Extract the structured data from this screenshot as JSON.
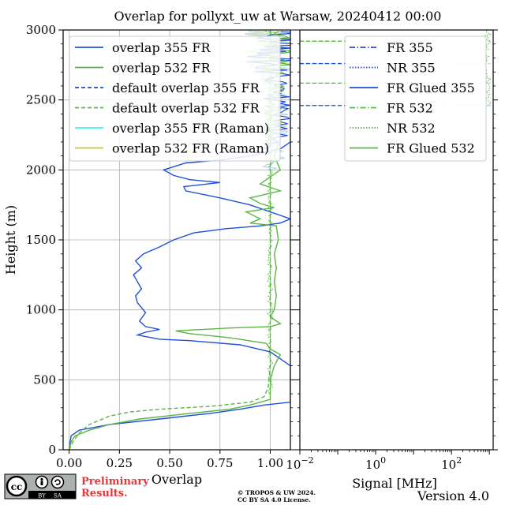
{
  "title": "Overlap for pollyxt_uw at Warsaw, 20240412 00:00",
  "version": "Version 4.0",
  "copyright": [
    "© TROPOS & UW 2024.",
    "CC BY SA 4.0 License."
  ],
  "preliminary": [
    "Preliminary",
    "Results."
  ],
  "license_badge": {
    "cc": "cc",
    "by": "BY",
    "sa": "SA"
  },
  "colors": {
    "blue": "#1f4fd6",
    "green": "#5bb545",
    "cyan": "#3ef3f0",
    "yellow": "#c9cc2a",
    "light_blue": "#c9d8ee",
    "light_green": "#cfe6c3",
    "prelim": "#e8353a"
  },
  "chart_data": [
    {
      "type": "line",
      "ylabel": "Height (m)",
      "xlabel": "Overlap",
      "xlim": [
        -0.03,
        1.1
      ],
      "ylim": [
        0,
        3000
      ],
      "grid": true,
      "legend_position": "top-right",
      "xticks": [
        {
          "v": 0,
          "label": "0.00"
        },
        {
          "v": 0.25,
          "label": "0.25"
        },
        {
          "v": 0.5,
          "label": "0.50"
        },
        {
          "v": 0.75,
          "label": "0.75"
        },
        {
          "v": 1.0,
          "label": "1.00"
        }
      ],
      "yticks": [
        {
          "v": 0,
          "label": "0"
        },
        {
          "v": 500,
          "label": "500"
        },
        {
          "v": 1000,
          "label": "1000"
        },
        {
          "v": 1500,
          "label": "1500"
        },
        {
          "v": 2000,
          "label": "2000"
        },
        {
          "v": 2500,
          "label": "2500"
        },
        {
          "v": 3000,
          "label": "3000"
        }
      ],
      "series": [
        {
          "name": "overlap 355 FR",
          "color": "#1f4fd6",
          "style": "solid",
          "points": [
            [
              0.0,
              0
            ],
            [
              0.005,
              60
            ],
            [
              0.01,
              100
            ],
            [
              0.05,
              140
            ],
            [
              0.2,
              180
            ],
            [
              0.45,
              220
            ],
            [
              0.7,
              260
            ],
            [
              0.85,
              290
            ],
            [
              0.97,
              320
            ],
            [
              1.1,
              340
            ],
            [
              1.1,
              600
            ],
            [
              1.0,
              700
            ],
            [
              0.85,
              750
            ],
            [
              0.6,
              780
            ],
            [
              0.45,
              790
            ],
            [
              0.34,
              820
            ],
            [
              0.38,
              840
            ],
            [
              0.45,
              860
            ],
            [
              0.38,
              880
            ],
            [
              0.35,
              920
            ],
            [
              0.38,
              980
            ],
            [
              0.34,
              1050
            ],
            [
              0.33,
              1100
            ],
            [
              0.36,
              1150
            ],
            [
              0.34,
              1200
            ],
            [
              0.32,
              1250
            ],
            [
              0.36,
              1300
            ],
            [
              0.33,
              1350
            ],
            [
              0.37,
              1400
            ],
            [
              0.45,
              1450
            ],
            [
              0.52,
              1500
            ],
            [
              0.62,
              1550
            ],
            [
              0.78,
              1580
            ],
            [
              0.95,
              1600
            ],
            [
              1.05,
              1620
            ],
            [
              1.1,
              1650
            ],
            [
              1.0,
              1700
            ],
            [
              0.9,
              1750
            ],
            [
              0.75,
              1800
            ],
            [
              0.58,
              1850
            ],
            [
              0.57,
              1880
            ],
            [
              0.75,
              1910
            ],
            [
              0.6,
              1930
            ],
            [
              0.52,
              1960
            ],
            [
              0.47,
              2000
            ],
            [
              0.58,
              2050
            ],
            [
              0.75,
              2070
            ],
            [
              0.9,
              2100
            ],
            [
              1.05,
              2150
            ],
            [
              1.1,
              2200
            ]
          ]
        },
        {
          "name": "overlap 532 FR",
          "color": "#5bb545",
          "style": "solid",
          "points": [
            [
              0.0,
              0
            ],
            [
              0.01,
              60
            ],
            [
              0.03,
              100
            ],
            [
              0.1,
              140
            ],
            [
              0.2,
              180
            ],
            [
              0.35,
              220
            ],
            [
              0.6,
              260
            ],
            [
              0.8,
              290
            ],
            [
              0.9,
              320
            ],
            [
              1.0,
              360
            ],
            [
              1.0,
              500
            ],
            [
              1.02,
              600
            ],
            [
              1.05,
              680
            ],
            [
              1.0,
              720
            ],
            [
              0.98,
              760
            ],
            [
              0.8,
              800
            ],
            [
              0.6,
              830
            ],
            [
              0.53,
              850
            ],
            [
              0.8,
              870
            ],
            [
              1.0,
              880
            ],
            [
              1.05,
              900
            ],
            [
              1.0,
              950
            ],
            [
              1.02,
              1000
            ],
            [
              1.03,
              1100
            ],
            [
              1.02,
              1200
            ],
            [
              1.03,
              1300
            ],
            [
              1.02,
              1400
            ],
            [
              1.04,
              1500
            ],
            [
              1.03,
              1600
            ],
            [
              0.9,
              1620
            ],
            [
              0.95,
              1650
            ],
            [
              0.88,
              1700
            ],
            [
              1.02,
              1730
            ],
            [
              0.95,
              1760
            ],
            [
              0.9,
              1800
            ],
            [
              1.05,
              1850
            ],
            [
              0.95,
              1900
            ],
            [
              1.0,
              1950
            ],
            [
              1.05,
              2000
            ],
            [
              1.02,
              2100
            ],
            [
              1.04,
              2200
            ]
          ]
        },
        {
          "name": "default overlap 355 FR",
          "color": "#1f4fd6",
          "style": "dashed",
          "points": []
        },
        {
          "name": "default overlap 532 FR",
          "color": "#5bb545",
          "style": "dashed",
          "points": [
            [
              0.0,
              0
            ],
            [
              0.02,
              60
            ],
            [
              0.05,
              120
            ],
            [
              0.1,
              180
            ],
            [
              0.2,
              240
            ],
            [
              0.3,
              270
            ],
            [
              0.45,
              290
            ],
            [
              0.7,
              310
            ],
            [
              0.9,
              340
            ],
            [
              0.97,
              380
            ],
            [
              0.99,
              450
            ],
            [
              1.0,
              600
            ],
            [
              1.0,
              800
            ],
            [
              1.0,
              1000
            ],
            [
              1.0,
              1200
            ],
            [
              1.0,
              1400
            ],
            [
              1.0,
              1600
            ],
            [
              1.0,
              1800
            ],
            [
              1.0,
              2000
            ],
            [
              1.0,
              2200
            ],
            [
              1.0,
              2400
            ],
            [
              1.0,
              2600
            ],
            [
              1.0,
              2800
            ],
            [
              1.0,
              3000
            ]
          ]
        },
        {
          "name": "overlap 355 FR (Raman)",
          "color": "#3ef3f0",
          "style": "solid",
          "points": []
        },
        {
          "name": "overlap 532 FR (Raman)",
          "color": "#c9cc2a",
          "style": "solid",
          "points": []
        }
      ]
    },
    {
      "type": "line",
      "xlabel": "Signal [MHz]",
      "xscale": "log",
      "xlim": [
        -2,
        3.1
      ],
      "ylim": [
        0,
        3000
      ],
      "grid": false,
      "legend_position": "top-right",
      "xticks": [
        {
          "v": -2,
          "base": "10",
          "exp": "−2"
        },
        {
          "v": 0,
          "base": "10",
          "exp": "0"
        },
        {
          "v": 2,
          "base": "10",
          "exp": "2"
        }
      ],
      "series": [
        {
          "name": "FR 355",
          "color": "#1f4fd6",
          "style": "dashdot",
          "points": []
        },
        {
          "name": "NR 355",
          "color": "#1f4fd6",
          "style": "dotted",
          "points": []
        },
        {
          "name": "FR Glued 355",
          "color": "#1f4fd6",
          "style": "solid",
          "points": []
        },
        {
          "name": "FR 532",
          "color": "#5bb545",
          "style": "dashdot",
          "points": []
        },
        {
          "name": "NR 532",
          "color": "#5bb545",
          "style": "dotted",
          "points": []
        },
        {
          "name": "FR Glued 532",
          "color": "#5bb545",
          "style": "solid",
          "points": []
        }
      ]
    }
  ]
}
